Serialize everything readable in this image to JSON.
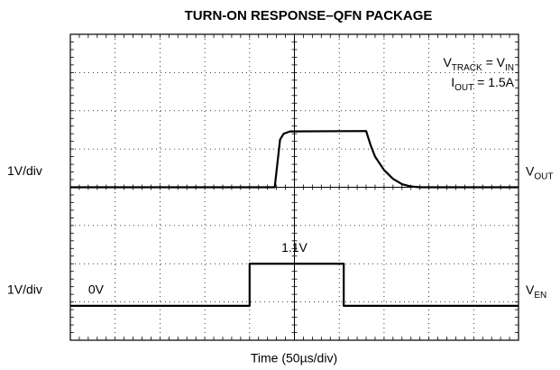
{
  "chart_data": {
    "type": "line",
    "title": "TURN-ON RESPONSE–QFN PACKAGE",
    "xlabel": "Time (50µs/div)",
    "xlim": [
      0,
      500
    ],
    "xticks": [
      0,
      50,
      100,
      150,
      200,
      250,
      300,
      350,
      400,
      450,
      500
    ],
    "grid": true,
    "annotations": [
      {
        "parts": [
          {
            "t": "V"
          },
          {
            "t": "TRACK",
            "sub": true
          },
          {
            "t": " = V"
          },
          {
            "t": "IN",
            "sub": true
          }
        ]
      },
      {
        "parts": [
          {
            "t": "I"
          },
          {
            "t": "OUT",
            "sub": true
          },
          {
            "t": " = 1.5A"
          }
        ]
      }
    ],
    "series": [
      {
        "label": {
          "parts": [
            {
              "t": "V"
            },
            {
              "t": "OUT",
              "sub": true
            }
          ]
        },
        "scale": "1V/div",
        "color": "#000000",
        "ylim": [
          -4,
          4
        ],
        "x": [
          0,
          228,
          234,
          238,
          245,
          330,
          335,
          340,
          350,
          360,
          370,
          380,
          390,
          500
        ],
        "values": [
          0,
          0,
          1.25,
          1.4,
          1.46,
          1.47,
          1.1,
          0.8,
          0.45,
          0.22,
          0.08,
          0.02,
          0,
          0
        ]
      },
      {
        "label": {
          "parts": [
            {
              "t": "V"
            },
            {
              "t": "EN",
              "sub": true
            }
          ]
        },
        "scale": "1V/div",
        "color": "#000000",
        "ylim": [
          -0.9,
          7.1
        ],
        "x": [
          0,
          200,
          200,
          305,
          305,
          500
        ],
        "values": [
          0,
          0,
          1.1,
          1.1,
          0,
          0
        ],
        "level_labels": [
          {
            "text": "0V",
            "value": 0,
            "x": 20
          },
          {
            "text": "1.1V",
            "value": 1.1,
            "x": 250
          }
        ]
      }
    ]
  }
}
